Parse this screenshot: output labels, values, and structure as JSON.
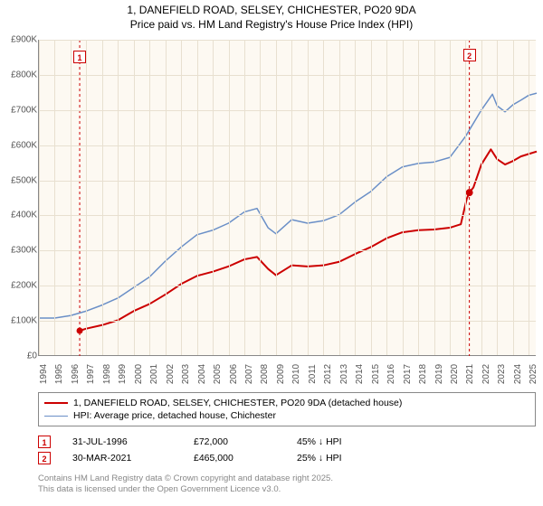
{
  "title_line1": "1, DANEFIELD ROAD, SELSEY, CHICHESTER, PO20 9DA",
  "title_line2": "Price paid vs. HM Land Registry's House Price Index (HPI)",
  "chart": {
    "type": "line",
    "background_color": "#fdf9f2",
    "grid_color": "#e8e0d0",
    "axis_color": "#888888",
    "ylim": [
      0,
      900000
    ],
    "ytick_step": 100000,
    "yticks": [
      "£0",
      "£100K",
      "£200K",
      "£300K",
      "£400K",
      "£500K",
      "£600K",
      "£700K",
      "£800K",
      "£900K"
    ],
    "xlim": [
      1994,
      2025.5
    ],
    "xticks": [
      1994,
      1995,
      1996,
      1997,
      1998,
      1999,
      2000,
      2001,
      2002,
      2003,
      2004,
      2005,
      2006,
      2007,
      2008,
      2009,
      2010,
      2011,
      2012,
      2013,
      2014,
      2015,
      2016,
      2017,
      2018,
      2019,
      2020,
      2021,
      2022,
      2023,
      2024,
      2025
    ],
    "label_fontsize": 10,
    "series": [
      {
        "name": "price_paid",
        "label": "1, DANEFIELD ROAD, SELSEY, CHICHESTER, PO20 9DA (detached house)",
        "color": "#cc0000",
        "line_width": 2,
        "data": [
          [
            1996.58,
            72000
          ],
          [
            1997,
            78000
          ],
          [
            1998,
            88000
          ],
          [
            1999,
            102000
          ],
          [
            2000,
            128000
          ],
          [
            2001,
            148000
          ],
          [
            2002,
            175000
          ],
          [
            2003,
            205000
          ],
          [
            2004,
            228000
          ],
          [
            2005,
            240000
          ],
          [
            2006,
            255000
          ],
          [
            2007,
            275000
          ],
          [
            2007.8,
            282000
          ],
          [
            2008.5,
            248000
          ],
          [
            2009,
            230000
          ],
          [
            2010,
            258000
          ],
          [
            2011,
            255000
          ],
          [
            2012,
            258000
          ],
          [
            2013,
            268000
          ],
          [
            2014,
            290000
          ],
          [
            2015,
            310000
          ],
          [
            2016,
            335000
          ],
          [
            2017,
            352000
          ],
          [
            2018,
            358000
          ],
          [
            2019,
            360000
          ],
          [
            2020,
            365000
          ],
          [
            2020.7,
            375000
          ],
          [
            2021.08,
            448000
          ],
          [
            2021.24,
            465000
          ],
          [
            2021.5,
            480000
          ],
          [
            2022,
            545000
          ],
          [
            2022.6,
            588000
          ],
          [
            2023,
            560000
          ],
          [
            2023.5,
            545000
          ],
          [
            2024,
            555000
          ],
          [
            2024.5,
            568000
          ],
          [
            2025,
            575000
          ],
          [
            2025.5,
            582000
          ]
        ],
        "marker_point": [
          2021.24,
          465000
        ],
        "sale_markers": [
          {
            "x": 1996.58,
            "y": 72000
          },
          {
            "x": 2021.24,
            "y": 465000
          }
        ]
      },
      {
        "name": "hpi",
        "label": "HPI: Average price, detached house, Chichester",
        "color": "#6a8fc7",
        "line_width": 1.5,
        "data": [
          [
            1994,
            108000
          ],
          [
            1995,
            108000
          ],
          [
            1996,
            115000
          ],
          [
            1997,
            128000
          ],
          [
            1998,
            145000
          ],
          [
            1999,
            165000
          ],
          [
            2000,
            195000
          ],
          [
            2001,
            225000
          ],
          [
            2002,
            270000
          ],
          [
            2003,
            310000
          ],
          [
            2004,
            345000
          ],
          [
            2005,
            358000
          ],
          [
            2006,
            378000
          ],
          [
            2007,
            410000
          ],
          [
            2007.8,
            420000
          ],
          [
            2008.5,
            365000
          ],
          [
            2009,
            348000
          ],
          [
            2010,
            388000
          ],
          [
            2011,
            378000
          ],
          [
            2012,
            385000
          ],
          [
            2013,
            402000
          ],
          [
            2014,
            438000
          ],
          [
            2015,
            468000
          ],
          [
            2016,
            510000
          ],
          [
            2017,
            538000
          ],
          [
            2018,
            548000
          ],
          [
            2019,
            552000
          ],
          [
            2020,
            565000
          ],
          [
            2021,
            625000
          ],
          [
            2022,
            700000
          ],
          [
            2022.7,
            745000
          ],
          [
            2023,
            712000
          ],
          [
            2023.5,
            695000
          ],
          [
            2024,
            715000
          ],
          [
            2024.5,
            728000
          ],
          [
            2025,
            742000
          ],
          [
            2025.5,
            748000
          ]
        ]
      }
    ],
    "vmarkers": [
      {
        "id": "1",
        "x": 1996.58,
        "color": "#cc0000"
      },
      {
        "id": "2",
        "x": 2021.24,
        "color": "#cc0000"
      }
    ]
  },
  "legend": {
    "items": [
      {
        "color": "#cc0000",
        "width": 2,
        "label": "1, DANEFIELD ROAD, SELSEY, CHICHESTER, PO20 9DA (detached house)"
      },
      {
        "color": "#6a8fc7",
        "width": 1.5,
        "label": "HPI: Average price, detached house, Chichester"
      }
    ]
  },
  "annotations": [
    {
      "id": "1",
      "color": "#cc0000",
      "date": "31-JUL-1996",
      "price": "£72,000",
      "pct": "45% ↓ HPI"
    },
    {
      "id": "2",
      "color": "#cc0000",
      "date": "30-MAR-2021",
      "price": "£465,000",
      "pct": "25% ↓ HPI"
    }
  ],
  "copyright_line1": "Contains HM Land Registry data © Crown copyright and database right 2025.",
  "copyright_line2": "This data is licensed under the Open Government Licence v3.0."
}
